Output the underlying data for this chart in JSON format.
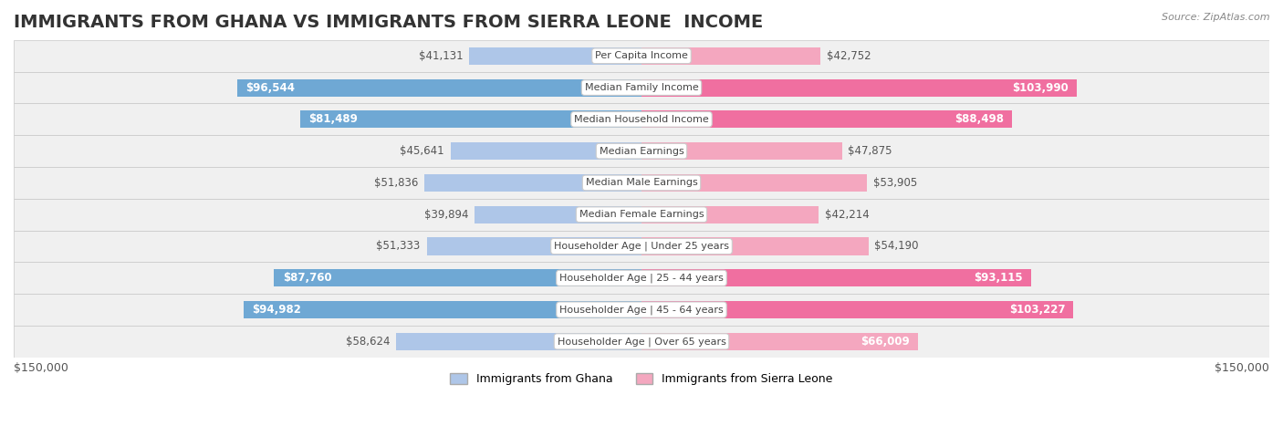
{
  "title": "IMMIGRANTS FROM GHANA VS IMMIGRANTS FROM SIERRA LEONE  INCOME",
  "source": "Source: ZipAtlas.com",
  "categories": [
    "Per Capita Income",
    "Median Family Income",
    "Median Household Income",
    "Median Earnings",
    "Median Male Earnings",
    "Median Female Earnings",
    "Householder Age | Under 25 years",
    "Householder Age | 25 - 44 years",
    "Householder Age | 45 - 64 years",
    "Householder Age | Over 65 years"
  ],
  "ghana_values": [
    41131,
    96544,
    81489,
    45641,
    51836,
    39894,
    51333,
    87760,
    94982,
    58624
  ],
  "sierra_leone_values": [
    42752,
    103990,
    88498,
    47875,
    53905,
    42214,
    54190,
    93115,
    103227,
    66009
  ],
  "ghana_labels": [
    "$41,131",
    "$96,544",
    "$81,489",
    "$45,641",
    "$51,836",
    "$39,894",
    "$51,333",
    "$87,760",
    "$94,982",
    "$58,624"
  ],
  "sierra_leone_labels": [
    "$42,752",
    "$103,990",
    "$88,498",
    "$47,875",
    "$53,905",
    "$42,214",
    "$54,190",
    "$93,115",
    "$103,227",
    "$66,009"
  ],
  "ghana_color_light": "#aec6e8",
  "ghana_color_dark": "#6fa8d4",
  "sierra_leone_color_light": "#f4a7bf",
  "sierra_leone_color_dark": "#f06fa0",
  "max_value": 150000,
  "x_label_left": "$150,000",
  "x_label_right": "$150,000",
  "legend_ghana": "Immigrants from Ghana",
  "legend_sierra_leone": "Immigrants from Sierra Leone",
  "background_color": "#ffffff",
  "row_bg_color": "#f0f0f0",
  "title_fontsize": 14,
  "label_fontsize": 9
}
